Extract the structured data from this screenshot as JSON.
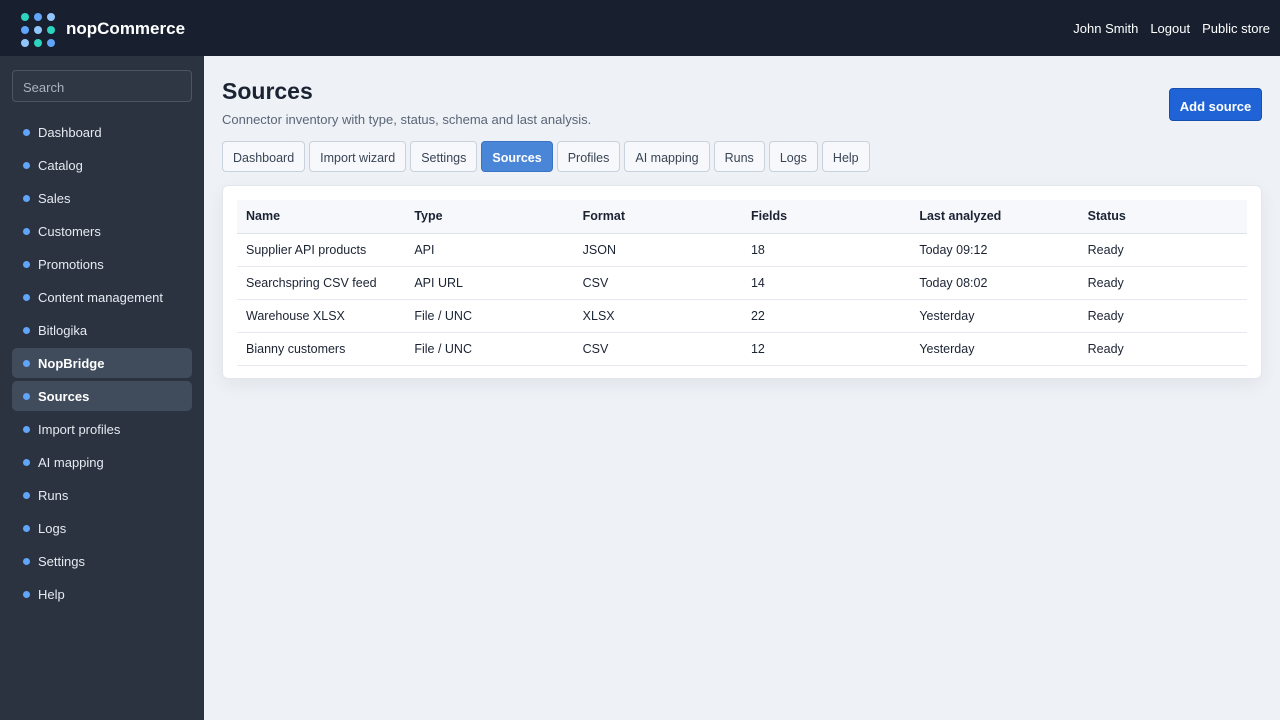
{
  "header": {
    "brand": "nopCommerce",
    "user": "John Smith",
    "links": [
      "Logout",
      "Public store"
    ]
  },
  "sidebar": {
    "search": "Search",
    "items": [
      "Dashboard",
      "Catalog",
      "Sales",
      "Customers",
      "Promotions",
      "Content management",
      "Bitlogika",
      "NopBridge",
      "Sources",
      "Import profiles",
      "AI mapping",
      "Runs",
      "Logs",
      "Settings",
      "Help"
    ]
  },
  "page": {
    "title": "Sources",
    "subtitle": "Connector inventory with type, status, schema and last analysis.",
    "action": "Add source",
    "tabs": [
      "Dashboard",
      "Import wizard",
      "Settings",
      "Sources",
      "Profiles",
      "AI mapping",
      "Runs",
      "Logs",
      "Help"
    ]
  },
  "table": {
    "columns": [
      "Name",
      "Type",
      "Format",
      "Fields",
      "Last analyzed",
      "Status"
    ],
    "rows": [
      [
        "Supplier API products",
        "API",
        "JSON",
        18,
        "Today 09:12",
        "Ready"
      ],
      [
        "Searchspring CSV feed",
        "API URL",
        "CSV",
        14,
        "Today 08:02",
        "Ready"
      ],
      [
        "Warehouse XLSX",
        "File / UNC",
        "XLSX",
        22,
        "Yesterday",
        "Ready"
      ],
      [
        "Bianny customers",
        "File / UNC",
        "CSV",
        12,
        "Yesterday",
        "Ready"
      ]
    ]
  }
}
